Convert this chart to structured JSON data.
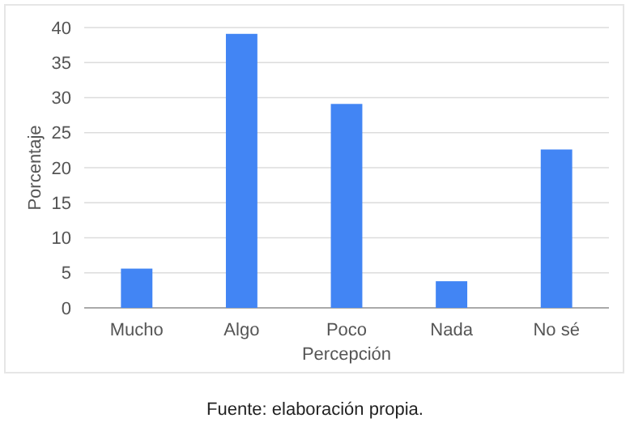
{
  "chart_data": {
    "type": "bar",
    "xlabel": "Percepción",
    "ylabel": "Porcentaje",
    "categories": [
      "Mucho",
      "Algo",
      "Poco",
      "Nada",
      "No sé"
    ],
    "values": [
      5.6,
      39.1,
      29.1,
      3.8,
      22.6
    ],
    "color": "#4285f4",
    "ylim": [
      0,
      40
    ],
    "yticks": [
      0,
      5,
      10,
      15,
      20,
      25,
      30,
      35,
      40
    ],
    "grid": "y",
    "annotations": [
      "Fuente: elaboración propia."
    ]
  }
}
